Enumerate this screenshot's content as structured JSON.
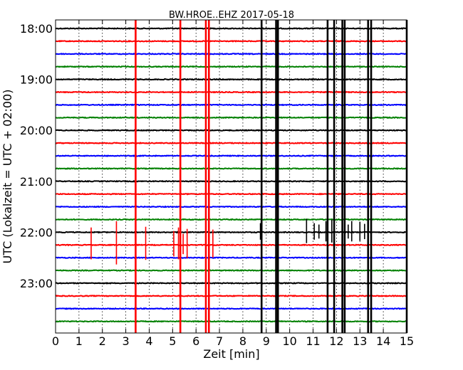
{
  "chart_data": {
    "type": "line",
    "title": "BW.HROE..EHZ 2017-05-18",
    "xlabel": "Zeit  [min]",
    "ylabel": "UTC (Lokalzeit = UTC + 02:00)",
    "xlim": [
      0,
      15
    ],
    "x_ticks": [
      0,
      1,
      2,
      3,
      4,
      5,
      6,
      7,
      8,
      9,
      10,
      11,
      12,
      13,
      14,
      15
    ],
    "x_tick_labels": [
      "0",
      "1",
      "2",
      "3",
      "4",
      "5",
      "6",
      "7",
      "8",
      "9",
      "10",
      "11",
      "12",
      "13",
      "14",
      "15"
    ],
    "y_tick_labels": [
      "18:00",
      "19:00",
      "20:00",
      "21:00",
      "22:00",
      "23:00"
    ],
    "grid": true,
    "trace_minutes": 15,
    "color_cycle": [
      "#000000",
      "#ff0000",
      "#0000ff",
      "#008000"
    ],
    "traces": [
      {
        "time": "18:00",
        "color": "#000000"
      },
      {
        "time": "18:15",
        "color": "#ff0000"
      },
      {
        "time": "18:30",
        "color": "#0000ff"
      },
      {
        "time": "18:45",
        "color": "#008000"
      },
      {
        "time": "19:00",
        "color": "#000000"
      },
      {
        "time": "19:15",
        "color": "#ff0000"
      },
      {
        "time": "19:30",
        "color": "#0000ff"
      },
      {
        "time": "19:45",
        "color": "#008000"
      },
      {
        "time": "20:00",
        "color": "#000000"
      },
      {
        "time": "20:15",
        "color": "#ff0000"
      },
      {
        "time": "20:30",
        "color": "#0000ff"
      },
      {
        "time": "20:45",
        "color": "#008000"
      },
      {
        "time": "21:00",
        "color": "#000000"
      },
      {
        "time": "21:15",
        "color": "#ff0000"
      },
      {
        "time": "21:30",
        "color": "#0000ff"
      },
      {
        "time": "21:45",
        "color": "#008000"
      },
      {
        "time": "22:00",
        "color": "#000000"
      },
      {
        "time": "22:15",
        "color": "#ff0000"
      },
      {
        "time": "22:30",
        "color": "#0000ff"
      },
      {
        "time": "22:45",
        "color": "#008000"
      },
      {
        "time": "23:00",
        "color": "#000000"
      },
      {
        "time": "23:15",
        "color": "#ff0000"
      },
      {
        "time": "23:30",
        "color": "#0000ff"
      },
      {
        "time": "23:45",
        "color": "#008000"
      }
    ],
    "events": [
      {
        "trace": 1,
        "minute": 3.42,
        "amplitude_traces": 24.0,
        "color": "#ff0000"
      },
      {
        "trace": 1,
        "minute": 5.33,
        "amplitude_traces": 24.0,
        "color": "#ff0000"
      },
      {
        "trace": 1,
        "minute": 6.42,
        "amplitude_traces": 24.0,
        "color": "#ff0000"
      },
      {
        "trace": 1,
        "minute": 6.55,
        "amplitude_traces": 24.0,
        "color": "#ff0000"
      },
      {
        "trace": 4,
        "minute": 8.8,
        "amplitude_traces": 24.0,
        "color": "#000000"
      },
      {
        "trace": 4,
        "minute": 9.42,
        "amplitude_traces": 24.0,
        "color": "#000000"
      },
      {
        "trace": 4,
        "minute": 9.5,
        "amplitude_traces": 24.0,
        "color": "#000000"
      },
      {
        "trace": 4,
        "minute": 11.62,
        "amplitude_traces": 24.0,
        "color": "#000000"
      },
      {
        "trace": 4,
        "minute": 11.9,
        "amplitude_traces": 24.0,
        "color": "#000000"
      },
      {
        "trace": 4,
        "minute": 12.25,
        "amplitude_traces": 24.0,
        "color": "#000000"
      },
      {
        "trace": 4,
        "minute": 12.35,
        "amplitude_traces": 24.0,
        "color": "#000000"
      },
      {
        "trace": 4,
        "minute": 13.35,
        "amplitude_traces": 24.0,
        "color": "#000000"
      },
      {
        "trace": 4,
        "minute": 13.48,
        "amplitude_traces": 24.0,
        "color": "#000000"
      },
      {
        "trace": 4,
        "minute": 15.0,
        "amplitude_traces": 24.0,
        "color": "#000000"
      },
      {
        "trace": 17,
        "minute": 1.52,
        "amplitude_traces": 2.5,
        "color": "#ff0000"
      },
      {
        "trace": 17,
        "minute": 2.6,
        "amplitude_traces": 3.4,
        "color": "#ff0000"
      },
      {
        "trace": 17,
        "minute": 3.85,
        "amplitude_traces": 2.6,
        "color": "#ff0000"
      },
      {
        "trace": 17,
        "minute": 5.05,
        "amplitude_traces": 2.0,
        "color": "#ff0000"
      },
      {
        "trace": 17,
        "minute": 5.25,
        "amplitude_traces": 2.5,
        "color": "#ff0000"
      },
      {
        "trace": 17,
        "minute": 5.45,
        "amplitude_traces": 1.6,
        "color": "#ff0000"
      },
      {
        "trace": 17,
        "minute": 5.62,
        "amplitude_traces": 2.3,
        "color": "#ff0000"
      },
      {
        "trace": 17,
        "minute": 6.72,
        "amplitude_traces": 2.2,
        "color": "#ff0000"
      },
      {
        "trace": 16,
        "minute": 8.75,
        "amplitude_traces": 1.3,
        "color": "#000000"
      },
      {
        "trace": 16,
        "minute": 10.72,
        "amplitude_traces": 1.9,
        "color": "#000000"
      },
      {
        "trace": 16,
        "minute": 11.05,
        "amplitude_traces": 1.3,
        "color": "#000000"
      },
      {
        "trace": 16,
        "minute": 11.25,
        "amplitude_traces": 1.1,
        "color": "#000000"
      },
      {
        "trace": 16,
        "minute": 11.55,
        "amplitude_traces": 1.6,
        "color": "#000000"
      },
      {
        "trace": 16,
        "minute": 11.8,
        "amplitude_traces": 1.8,
        "color": "#000000"
      },
      {
        "trace": 16,
        "minute": 12.5,
        "amplitude_traces": 1.1,
        "color": "#000000"
      },
      {
        "trace": 16,
        "minute": 12.65,
        "amplitude_traces": 1.6,
        "color": "#000000"
      },
      {
        "trace": 16,
        "minute": 13.0,
        "amplitude_traces": 1.5,
        "color": "#000000"
      },
      {
        "trace": 16,
        "minute": 13.2,
        "amplitude_traces": 1.2,
        "color": "#000000"
      }
    ]
  }
}
